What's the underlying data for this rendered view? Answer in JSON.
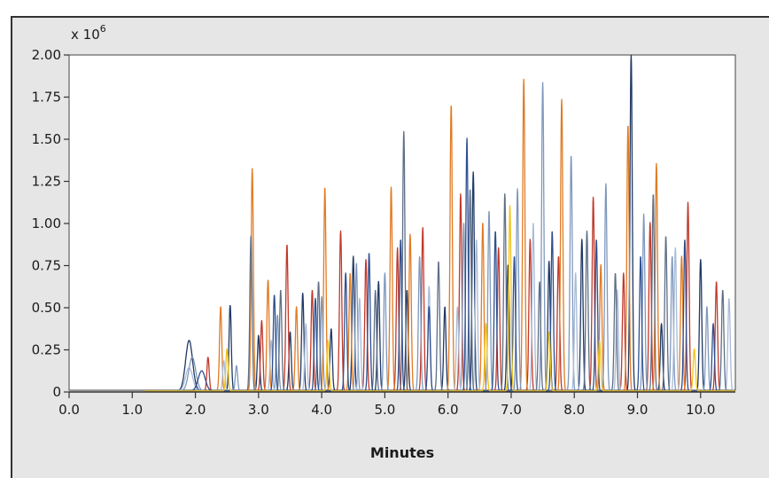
{
  "chart_data": {
    "type": "line",
    "title": "",
    "xlabel": "Minutes",
    "ylabel": "",
    "y_multiplier": {
      "base": "x 10",
      "exponent": "6"
    },
    "xlim": [
      0.0,
      10.55
    ],
    "ylim": [
      0,
      2.0
    ],
    "x_ticks": [
      "0.0",
      "1.0",
      "2.0",
      "3.0",
      "4.0",
      "5.0",
      "6.0",
      "7.0",
      "8.0",
      "9.0",
      "10.0"
    ],
    "y_ticks": [
      "0",
      "0.25",
      "0.50",
      "0.75",
      "1.00",
      "1.25",
      "1.50",
      "1.75",
      "2.00"
    ],
    "grid": false,
    "legend": "none",
    "colors": [
      "#1f3864",
      "#c0392b",
      "#e07b24",
      "#7f98bd",
      "#a9bbd6",
      "#5f6f86",
      "#2e4f8f",
      "#f0c419"
    ],
    "series": [
      {
        "color": "#1f3864",
        "peaks": [
          [
            1.9,
            0.3
          ],
          [
            2.55,
            0.51
          ],
          [
            3.0,
            0.33
          ],
          [
            3.5,
            0.35
          ],
          [
            3.7,
            0.58
          ],
          [
            4.15,
            0.37
          ],
          [
            4.5,
            0.8
          ],
          [
            4.9,
            0.65
          ],
          [
            5.35,
            0.6
          ],
          [
            5.95,
            0.5
          ],
          [
            6.4,
            1.3
          ],
          [
            6.95,
            0.75
          ],
          [
            7.6,
            0.77
          ],
          [
            8.12,
            0.9
          ],
          [
            8.9,
            2.0
          ],
          [
            9.38,
            0.4
          ],
          [
            10.0,
            0.78
          ]
        ]
      },
      {
        "color": "#c0392b",
        "peaks": [
          [
            2.2,
            0.2
          ],
          [
            3.05,
            0.42
          ],
          [
            3.45,
            0.87
          ],
          [
            3.85,
            0.6
          ],
          [
            4.3,
            0.95
          ],
          [
            4.7,
            0.78
          ],
          [
            5.2,
            0.85
          ],
          [
            5.6,
            0.97
          ],
          [
            6.2,
            1.17
          ],
          [
            6.8,
            0.85
          ],
          [
            7.3,
            0.9
          ],
          [
            7.75,
            0.8
          ],
          [
            8.3,
            1.15
          ],
          [
            8.78,
            0.7
          ],
          [
            9.2,
            1.0
          ],
          [
            9.8,
            1.12
          ],
          [
            10.25,
            0.65
          ]
        ]
      },
      {
        "color": "#e07b24",
        "peaks": [
          [
            2.4,
            0.5
          ],
          [
            2.9,
            1.32
          ],
          [
            3.15,
            0.66
          ],
          [
            3.6,
            0.5
          ],
          [
            4.05,
            1.21
          ],
          [
            4.45,
            0.7
          ],
          [
            5.1,
            1.21
          ],
          [
            5.4,
            0.93
          ],
          [
            6.05,
            1.7
          ],
          [
            6.55,
            1.0
          ],
          [
            7.2,
            1.85
          ],
          [
            7.8,
            1.73
          ],
          [
            8.42,
            0.75
          ],
          [
            8.85,
            1.58
          ],
          [
            9.3,
            1.35
          ],
          [
            9.7,
            0.8
          ]
        ]
      },
      {
        "color": "#7f98bd",
        "peaks": [
          [
            1.95,
            0.2
          ],
          [
            2.65,
            0.15
          ],
          [
            3.3,
            0.45
          ],
          [
            4.0,
            0.56
          ],
          [
            4.55,
            0.76
          ],
          [
            5.0,
            0.7
          ],
          [
            5.55,
            0.8
          ],
          [
            6.25,
            1.0
          ],
          [
            6.65,
            1.07
          ],
          [
            7.1,
            1.2
          ],
          [
            7.5,
            1.83
          ],
          [
            7.95,
            1.4
          ],
          [
            8.5,
            1.23
          ],
          [
            9.1,
            1.05
          ],
          [
            9.55,
            0.8
          ],
          [
            10.1,
            0.5
          ]
        ]
      },
      {
        "color": "#a9bbd6",
        "peaks": [
          [
            1.9,
            0.14
          ],
          [
            2.45,
            0.18
          ],
          [
            3.2,
            0.3
          ],
          [
            3.75,
            0.4
          ],
          [
            4.6,
            0.55
          ],
          [
            5.7,
            0.62
          ],
          [
            6.15,
            0.5
          ],
          [
            6.45,
            0.9
          ],
          [
            7.35,
            1.0
          ],
          [
            8.02,
            0.7
          ],
          [
            8.68,
            0.6
          ],
          [
            9.6,
            0.85
          ],
          [
            10.45,
            0.55
          ]
        ]
      },
      {
        "color": "#5f6f86",
        "peaks": [
          [
            2.88,
            0.92
          ],
          [
            3.35,
            0.6
          ],
          [
            3.95,
            0.65
          ],
          [
            4.85,
            0.6
          ],
          [
            5.3,
            1.54
          ],
          [
            5.85,
            0.77
          ],
          [
            6.35,
            1.2
          ],
          [
            6.9,
            1.17
          ],
          [
            7.45,
            0.65
          ],
          [
            8.2,
            0.95
          ],
          [
            8.65,
            0.7
          ],
          [
            9.25,
            1.17
          ],
          [
            9.45,
            0.92
          ],
          [
            10.35,
            0.6
          ]
        ]
      },
      {
        "color": "#2e4f8f",
        "peaks": [
          [
            2.1,
            0.12
          ],
          [
            3.25,
            0.57
          ],
          [
            3.9,
            0.55
          ],
          [
            4.38,
            0.7
          ],
          [
            4.75,
            0.82
          ],
          [
            5.25,
            0.9
          ],
          [
            5.7,
            0.5
          ],
          [
            6.3,
            1.5
          ],
          [
            6.75,
            0.95
          ],
          [
            7.05,
            0.8
          ],
          [
            7.65,
            0.95
          ],
          [
            8.35,
            0.9
          ],
          [
            9.05,
            0.8
          ],
          [
            9.75,
            0.9
          ],
          [
            10.2,
            0.4
          ]
        ]
      },
      {
        "color": "#f0c419",
        "peaks": [
          [
            2.5,
            0.25
          ],
          [
            4.1,
            0.3
          ],
          [
            6.6,
            0.4
          ],
          [
            6.98,
            1.1
          ],
          [
            7.6,
            0.35
          ],
          [
            8.4,
            0.3
          ],
          [
            9.9,
            0.25
          ]
        ]
      }
    ]
  }
}
